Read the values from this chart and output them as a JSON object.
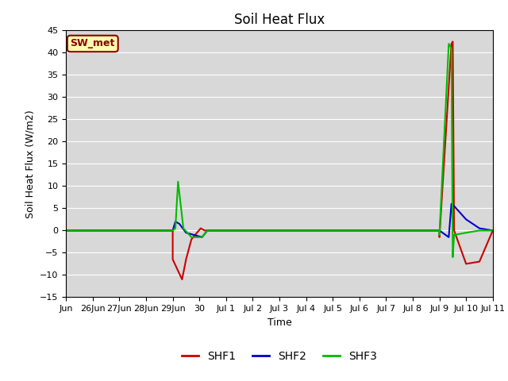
{
  "title": "Soil Heat Flux",
  "ylabel": "Soil Heat Flux (W/m2)",
  "xlabel": "Time",
  "ylim": [
    -15,
    45
  ],
  "yticks": [
    -15,
    -10,
    -5,
    0,
    5,
    10,
    15,
    20,
    25,
    30,
    35,
    40,
    45
  ],
  "background_color": "#d8d8d8",
  "figure_color": "#ffffff",
  "grid_color": "#ffffff",
  "annotation_text": "SW_met",
  "annotation_bg": "#ffffb0",
  "annotation_edge": "#8B0000",
  "series": {
    "SHF1": {
      "color": "#cc0000",
      "x": [
        0,
        4.0,
        4.0,
        4.35,
        4.5,
        4.7,
        5.05,
        5.2,
        14.0,
        14.0,
        14.45,
        14.5,
        14.55,
        15.0,
        15.5,
        16.0
      ],
      "y": [
        0,
        0,
        -6.5,
        -11.0,
        -6.5,
        -2.0,
        0.5,
        0,
        0,
        -1.5,
        42.0,
        42.5,
        0.0,
        -7.5,
        -7.0,
        0
      ]
    },
    "SHF2": {
      "color": "#0000cc",
      "x": [
        0,
        4.0,
        4.1,
        4.25,
        4.5,
        5.1,
        5.3,
        14.0,
        14.35,
        14.45,
        14.55,
        15.0,
        15.5,
        16.0
      ],
      "y": [
        0,
        0,
        2.0,
        1.5,
        -0.5,
        -1.5,
        0,
        0,
        -1.5,
        6.0,
        5.5,
        2.5,
        0.5,
        0
      ]
    },
    "SHF3": {
      "color": "#00bb00",
      "x": [
        0,
        4.0,
        4.1,
        4.2,
        4.4,
        4.7,
        5.1,
        5.3,
        14.0,
        14.0,
        14.35,
        14.45,
        14.5,
        14.55,
        15.0,
        15.5,
        16.0
      ],
      "y": [
        0,
        0,
        0.5,
        11.0,
        0.5,
        -1.5,
        -1.5,
        0,
        0,
        -1.0,
        42.0,
        41.0,
        -6.0,
        -1.0,
        -0.5,
        0,
        0
      ]
    }
  },
  "xtick_positions": [
    0,
    1,
    2,
    3,
    4,
    5,
    6,
    7,
    8,
    9,
    10,
    11,
    12,
    13,
    14,
    15,
    16
  ],
  "xtick_labels": [
    "Jun",
    "26Jun",
    "27Jun",
    "28Jun",
    "29Jun",
    "30",
    "Jul 1",
    "Jul 2",
    "Jul 3",
    "Jul 4",
    "Jul 5",
    "Jul 6",
    "Jul 7",
    "Jul 8",
    "Jul 9",
    "Jul 10",
    "Jul 11"
  ],
  "legend_entries": [
    "SHF1",
    "SHF2",
    "SHF3"
  ],
  "legend_colors": [
    "#cc0000",
    "#0000cc",
    "#00bb00"
  ]
}
